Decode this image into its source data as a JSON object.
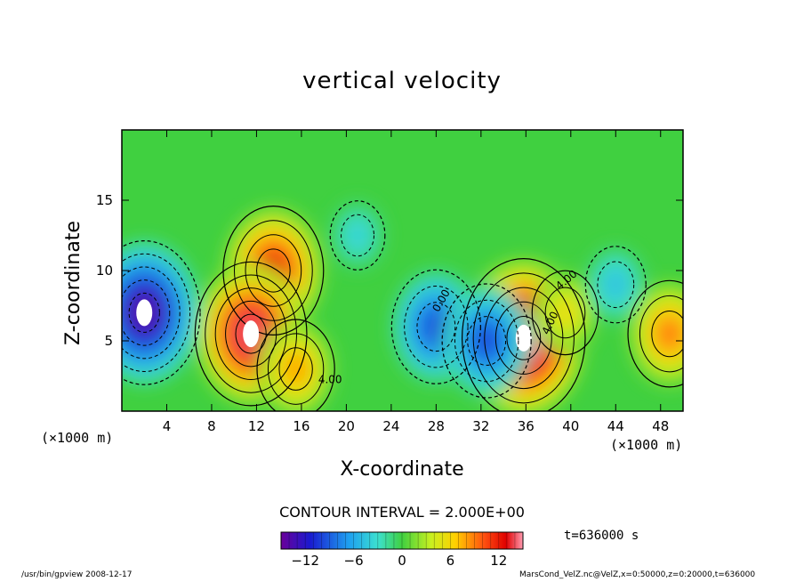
{
  "chart_data": {
    "type": "heatmap",
    "title": "vertical velocity",
    "xlabel": "X-coordinate",
    "ylabel": "Z-coordinate",
    "x_unit_left": "(×1000 m)",
    "x_unit_right": "(×1000 m)",
    "xlim": [
      0,
      50
    ],
    "ylim": [
      0,
      20
    ],
    "x_ticks": [
      4,
      8,
      12,
      16,
      20,
      24,
      28,
      32,
      36,
      40,
      44,
      48
    ],
    "y_ticks": [
      5,
      10,
      15
    ],
    "contour_interval_text": "CONTOUR INTERVAL = 2.000E+00",
    "contour_labels": [
      "4.00",
      "4.00",
      "0.00",
      "4.00"
    ],
    "colorbar": {
      "range": [
        -15,
        15
      ],
      "ticks": [
        -12,
        -6,
        0,
        6,
        12
      ]
    },
    "features": [
      {
        "x": 13.5,
        "z": 10.0,
        "value": 12
      },
      {
        "x": 11.5,
        "z": 5.5,
        "value": 14
      },
      {
        "x": 15.5,
        "z": 3.0,
        "value": 8
      },
      {
        "x": 35.8,
        "z": 5.2,
        "value": 16
      },
      {
        "x": 39.5,
        "z": 7.0,
        "value": 6
      },
      {
        "x": 2.0,
        "z": 7.0,
        "value": -14
      },
      {
        "x": 28.0,
        "z": 6.0,
        "value": -10
      },
      {
        "x": 32.5,
        "z": 5.0,
        "value": -10
      },
      {
        "x": 21.0,
        "z": 12.5,
        "value": -4
      },
      {
        "x": 44.0,
        "z": 9.0,
        "value": -5
      },
      {
        "x": 48.8,
        "z": 5.5,
        "value": 9
      }
    ]
  },
  "annotations": {
    "time": "t=636000 s",
    "footer_left": "/usr/bin/gpview   2008-12-17",
    "footer_right": "MarsCond_VelZ.nc@VelZ,x=0:50000,z=0:20000,t=636000"
  }
}
